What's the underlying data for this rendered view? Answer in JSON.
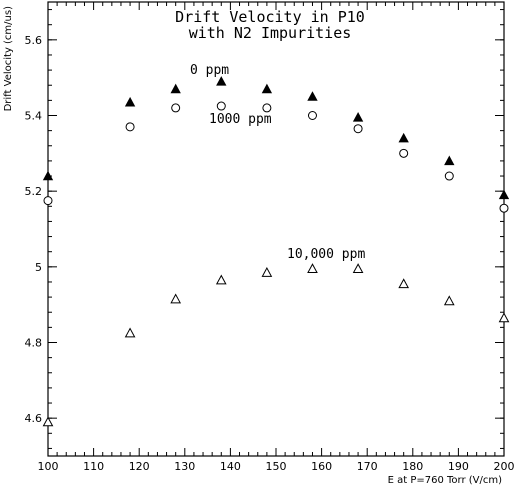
{
  "chart_data": {
    "type": "scatter",
    "title_lines": [
      "Drift Velocity in P10",
      "with N2 Impurities"
    ],
    "xlabel": "E at P=760 Torr (V/cm)",
    "ylabel": "Drift Velocity (cm/us)",
    "xlim": [
      100,
      200
    ],
    "ylim": [
      4.5,
      5.7
    ],
    "x_ticks": [
      100,
      110,
      120,
      130,
      140,
      150,
      160,
      170,
      180,
      190,
      200
    ],
    "y_ticks": [
      4.6,
      4.8,
      5,
      5.2,
      5.4,
      5.6
    ],
    "y_tick_labels": [
      "4.6",
      "4.8",
      "5",
      "5.2",
      "5.4",
      "5.6"
    ],
    "grid": false,
    "series": [
      {
        "name": "0 ppm",
        "marker": "filled-triangle",
        "x": [
          100,
          118,
          128,
          138,
          148,
          158,
          168,
          178,
          188,
          200
        ],
        "y": [
          5.24,
          5.435,
          5.47,
          5.49,
          5.47,
          5.45,
          5.395,
          5.34,
          5.28,
          5.19
        ]
      },
      {
        "name": "1000 ppm",
        "marker": "open-circle",
        "x": [
          100,
          118,
          128,
          138,
          148,
          158,
          168,
          178,
          188,
          200
        ],
        "y": [
          5.175,
          5.37,
          5.42,
          5.425,
          5.42,
          5.4,
          5.365,
          5.3,
          5.24,
          5.155
        ]
      },
      {
        "name": "10,000 ppm",
        "marker": "open-triangle",
        "x": [
          100,
          118,
          128,
          138,
          148,
          158,
          168,
          178,
          188,
          200
        ],
        "y": [
          4.59,
          4.825,
          4.915,
          4.965,
          4.985,
          4.995,
          4.995,
          4.955,
          4.91,
          4.865
        ]
      }
    ]
  }
}
